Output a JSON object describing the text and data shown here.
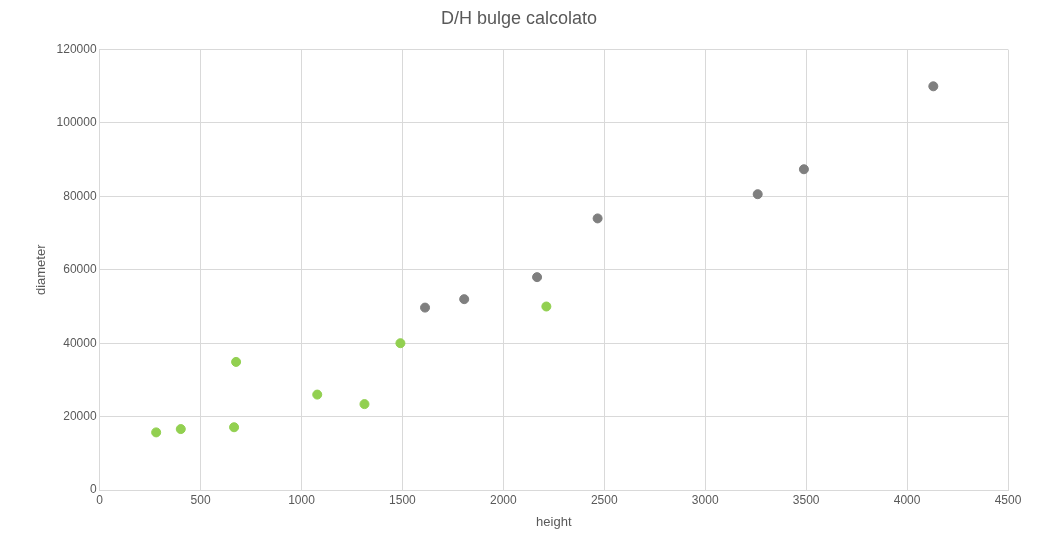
{
  "chart_data": {
    "type": "scatter",
    "title": "D/H bulge calcolato",
    "xlabel": "height",
    "ylabel": "diameter",
    "xlim": [
      0,
      4500
    ],
    "xticks": [
      0,
      500,
      1000,
      1500,
      2000,
      2500,
      3000,
      3500,
      4000,
      4500
    ],
    "ylim": [
      0,
      120000
    ],
    "yticks": [
      0,
      20000,
      40000,
      60000,
      80000,
      100000,
      120000
    ],
    "grid": true,
    "legend": false,
    "marker": "circle",
    "series": [
      {
        "color": "#92d050",
        "x": [
          280,
          402,
          666,
          676,
          1078,
          1312,
          1490,
          2213
        ],
        "values": [
          15700,
          16600,
          17100,
          34900,
          26000,
          23400,
          40000,
          50000
        ]
      },
      {
        "color": "#7f7f7f",
        "x": [
          1612,
          1806,
          2167,
          2467,
          3260,
          3489,
          4130
        ],
        "values": [
          49700,
          52000,
          58000,
          74000,
          80600,
          87400,
          110000
        ]
      }
    ]
  }
}
